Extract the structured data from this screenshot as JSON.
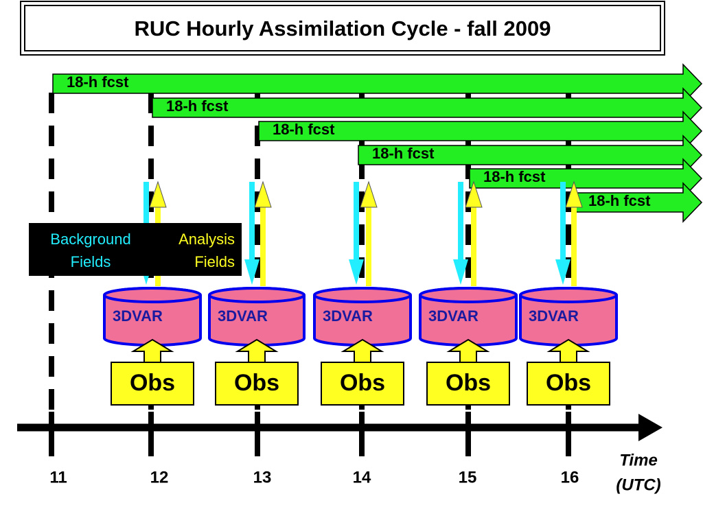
{
  "title": "RUC Hourly Assimilation Cycle - fall 2009",
  "forecasts": [
    {
      "label": "18-h fcst"
    },
    {
      "label": "18-h fcst"
    },
    {
      "label": "18-h fcst"
    },
    {
      "label": "18-h fcst"
    },
    {
      "label": "18-h fcst"
    },
    {
      "label": "18-h fcst"
    }
  ],
  "legend": {
    "background": [
      "Background",
      "Fields"
    ],
    "analysis": [
      "Analysis",
      "Fields"
    ]
  },
  "cycles": [
    {
      "label": "3DVAR",
      "obs": "Obs"
    },
    {
      "label": "3DVAR",
      "obs": "Obs"
    },
    {
      "label": "3DVAR",
      "obs": "Obs"
    },
    {
      "label": "3DVAR",
      "obs": "Obs"
    },
    {
      "label": "3DVAR",
      "obs": "Obs"
    }
  ],
  "axis": {
    "ticks": [
      "11",
      "12",
      "13",
      "14",
      "15",
      "16"
    ],
    "label": [
      "Time",
      "(UTC)"
    ]
  }
}
